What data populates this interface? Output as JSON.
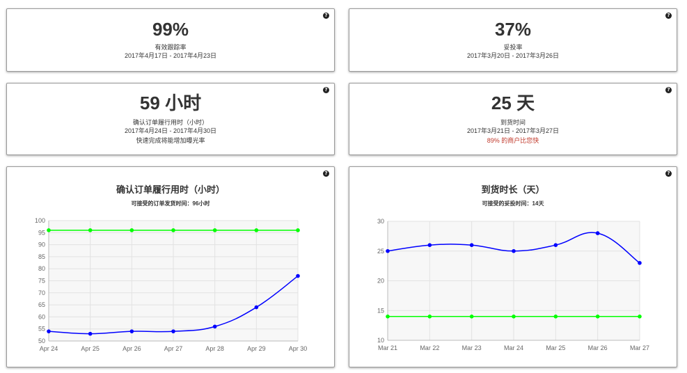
{
  "help_label": "?",
  "cards": {
    "valid_tracking": {
      "value": "99%",
      "label": "有效跟踪率",
      "date_range": "2017年4月17日 - 2017年4月23日"
    },
    "delivery_rate": {
      "value": "37%",
      "label": "妥投率",
      "date_range": "2017年3月20日 - 2017年3月26日"
    },
    "fulfillment_time": {
      "value": "59 小时",
      "label": "确认订单履行用时（小时）",
      "date_range": "2017年4月24日 - 2017年4月30日",
      "note": "快速完成将能增加曝光率"
    },
    "arrival_time": {
      "value": "25 天",
      "label": "到货时间",
      "date_range": "2017年3月21日 - 2017年3月27日",
      "note": "89% 的商户比您快"
    }
  },
  "chart_data": [
    {
      "type": "line",
      "title": "确认订单履行用时（小时）",
      "subtitle": "可接受的订单发货时间：96小时",
      "categories": [
        "Apr 24",
        "Apr 25",
        "Apr 26",
        "Apr 27",
        "Apr 28",
        "Apr 29",
        "Apr 30"
      ],
      "series": [
        {
          "values": [
            54,
            53,
            54,
            54,
            56,
            64,
            77
          ],
          "color": "#0000ff"
        },
        {
          "values": [
            96,
            96,
            96,
            96,
            96,
            96,
            96
          ],
          "color": "#00ff00"
        }
      ],
      "ylim": [
        50,
        100
      ],
      "yticks": [
        50,
        55,
        60,
        65,
        70,
        75,
        80,
        85,
        90,
        95,
        100
      ],
      "grid": true
    },
    {
      "type": "line",
      "title": "到货时长（天）",
      "subtitle": "可接受的妥投时间：14天",
      "categories": [
        "Mar 21",
        "Mar 22",
        "Mar 23",
        "Mar 24",
        "Mar 25",
        "Mar 26",
        "Mar 27"
      ],
      "series": [
        {
          "values": [
            25,
            26,
            26,
            25,
            26,
            28,
            23
          ],
          "color": "#0000ff"
        },
        {
          "values": [
            14,
            14,
            14,
            14,
            14,
            14,
            14
          ],
          "color": "#00ff00"
        }
      ],
      "ylim": [
        10,
        30
      ],
      "yticks": [
        10,
        15,
        20,
        25,
        30
      ],
      "grid": true
    }
  ]
}
